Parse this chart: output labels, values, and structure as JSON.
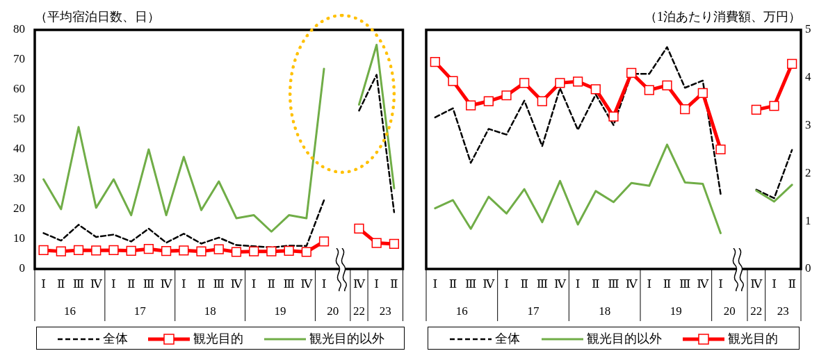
{
  "chart_data": [
    {
      "type": "line",
      "ylabel": "（平均宿泊日数、日）",
      "categories": [
        "Ⅰ",
        "Ⅱ",
        "Ⅲ",
        "Ⅳ",
        "Ⅰ",
        "Ⅱ",
        "Ⅲ",
        "Ⅳ",
        "Ⅰ",
        "Ⅱ",
        "Ⅲ",
        "Ⅳ",
        "Ⅰ",
        "Ⅱ",
        "Ⅲ",
        "Ⅳ",
        "Ⅰ",
        null,
        "Ⅳ",
        "Ⅰ",
        "Ⅱ"
      ],
      "series": [
        {
          "name": "全体",
          "color": "#000000",
          "line_style": "dashed",
          "values": [
            12,
            9.5,
            14.8,
            10.7,
            11.5,
            9.2,
            13.5,
            8.8,
            11.8,
            8.5,
            10.5,
            8,
            7.6,
            7.2,
            7.8,
            7.7,
            23,
            null,
            53,
            65,
            19
          ]
        },
        {
          "name": "観光目的",
          "color": "#ff0000",
          "line_style": "solid",
          "marker": "square",
          "values": [
            6.3,
            5.9,
            6.3,
            6.2,
            6.3,
            6.1,
            6.7,
            6,
            6.2,
            5.9,
            6.6,
            5.7,
            5.9,
            5.9,
            6.1,
            5.7,
            9.2,
            null,
            13.5,
            8.7,
            8.4
          ]
        },
        {
          "name": "観光目的以外",
          "color": "#70ad47",
          "line_style": "solid",
          "values": [
            30,
            20,
            47.5,
            20.5,
            30,
            18,
            40,
            18,
            37.5,
            19.7,
            29.3,
            17,
            18,
            12.5,
            18,
            17,
            67,
            null,
            55,
            75,
            27
          ]
        }
      ],
      "ylim": [
        0,
        80
      ],
      "yticks": [
        0,
        10,
        20,
        30,
        40,
        50,
        60,
        70,
        80
      ],
      "legend": "bottom",
      "annotations": [
        "16",
        "17",
        "18",
        "19",
        "20",
        "22",
        "23"
      ]
    },
    {
      "type": "line",
      "y2label": "（1泊あたり消費額、万円）",
      "categories": [
        "Ⅰ",
        "Ⅱ",
        "Ⅲ",
        "Ⅳ",
        "Ⅰ",
        "Ⅱ",
        "Ⅲ",
        "Ⅳ",
        "Ⅰ",
        "Ⅱ",
        "Ⅲ",
        "Ⅳ",
        "Ⅰ",
        "Ⅱ",
        "Ⅲ",
        "Ⅳ",
        "Ⅰ",
        null,
        "Ⅳ",
        "Ⅰ",
        "Ⅱ"
      ],
      "series": [
        {
          "name": "全体",
          "color": "#000000",
          "line_style": "dashed",
          "axis": "y2",
          "values": [
            3.17,
            3.36,
            2.22,
            2.93,
            2.81,
            3.52,
            2.57,
            3.78,
            2.91,
            3.65,
            3.01,
            4.08,
            4.08,
            4.64,
            3.79,
            3.94,
            1.57,
            null,
            1.66,
            1.48,
            2.49
          ]
        },
        {
          "name": "観光目的以外",
          "color": "#70ad47",
          "line_style": "solid",
          "axis": "y2",
          "values": [
            1.27,
            1.44,
            0.84,
            1.51,
            1.16,
            1.67,
            0.98,
            1.84,
            0.93,
            1.63,
            1.4,
            1.8,
            1.74,
            2.6,
            1.81,
            1.78,
            0.75,
            null,
            1.64,
            1.41,
            1.76
          ]
        },
        {
          "name": "観光目的",
          "color": "#ff0000",
          "line_style": "solid",
          "marker": "square",
          "axis": "y2",
          "values": [
            4.33,
            3.93,
            3.42,
            3.51,
            3.63,
            3.89,
            3.51,
            3.89,
            3.92,
            3.76,
            3.19,
            4.1,
            3.74,
            3.84,
            3.34,
            3.68,
            2.5,
            null,
            3.33,
            3.41,
            4.29
          ]
        }
      ],
      "y2lim": [
        0,
        5
      ],
      "y2ticks": [
        0,
        1,
        2,
        3,
        4,
        5
      ],
      "legend": "bottom",
      "annotations": [
        "16",
        "17",
        "18",
        "19",
        "20",
        "22",
        "23"
      ]
    }
  ]
}
